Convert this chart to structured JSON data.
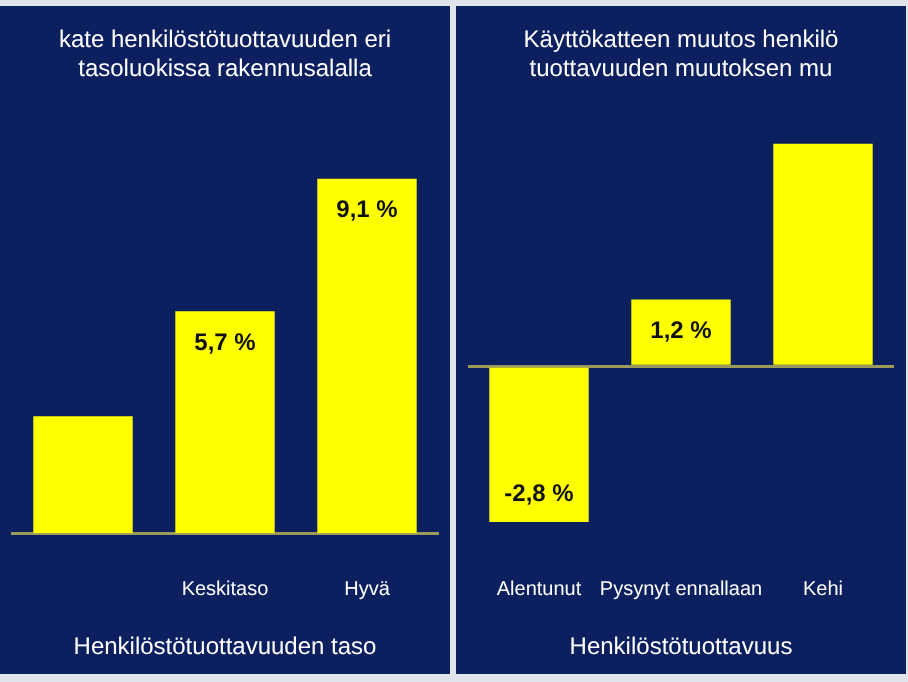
{
  "chart_data": [
    {
      "type": "bar",
      "title": [
        "kate henkilöstötuottavuuden eri",
        "tasoluokissa rakennusalalla"
      ],
      "xlabel": "Henkilöstötuottavuuden taso",
      "categories": [
        null,
        "Keskitaso",
        "Hyvä"
      ],
      "values": [
        3.0,
        5.7,
        9.1
      ],
      "value_labels": [
        null,
        "5,7 %",
        "9,1 %"
      ],
      "color": "#ffff00"
    },
    {
      "type": "bar",
      "title": [
        "Käyttökatteen muutos henkilö",
        "tuottavuuden muutoksen mu"
      ],
      "xlabel": "Henkilöstötuottavuus",
      "categories": [
        "Alentunut",
        "Pysynyt ennallaan",
        "Kehi"
      ],
      "values": [
        -2.8,
        1.2,
        4.0
      ],
      "value_labels": [
        "-2,8 %",
        "1,2 %",
        null
      ],
      "color": "#ffff00",
      "ref_lines": [
        {
          "axis": "y",
          "value": 0,
          "color": "#9a9a5a"
        }
      ]
    }
  ]
}
